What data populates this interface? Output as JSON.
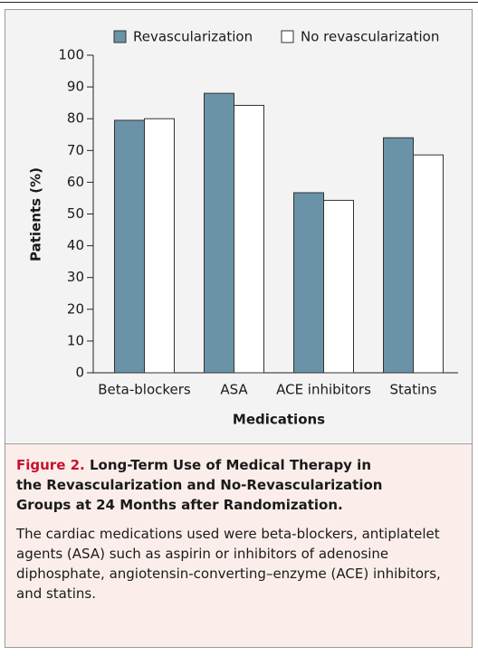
{
  "chart_data": {
    "type": "bar",
    "categories": [
      "Beta-blockers",
      "ASA",
      "ACE inhibitors",
      "Statins"
    ],
    "series": [
      {
        "name": "Revascularization",
        "color": "#6a93a8",
        "values": [
          79.5,
          88,
          56.7,
          74
        ]
      },
      {
        "name": "No revascularization",
        "color": "#ffffff",
        "values": [
          80,
          84.2,
          54.3,
          68.6
        ]
      }
    ],
    "ylim": [
      0,
      100
    ],
    "yticks": [
      0,
      10,
      20,
      30,
      40,
      50,
      60,
      70,
      80,
      90,
      100
    ],
    "xlabel": "Medications",
    "ylabel": "Patients (%)",
    "legend": "top"
  },
  "caption": {
    "label": "Figure 2.",
    "title": "Long-Term Use of Medical Therapy in the Revascularization and No-Revascularization Groups at 24 Months after Randomization.",
    "text": "The cardiac medications used were beta-blockers, antiplatelet agents (ASA) such as aspirin or inhibitors of adenosine diphosphate, angiotensin-converting–enzyme (ACE) inhibitors, and statins."
  }
}
